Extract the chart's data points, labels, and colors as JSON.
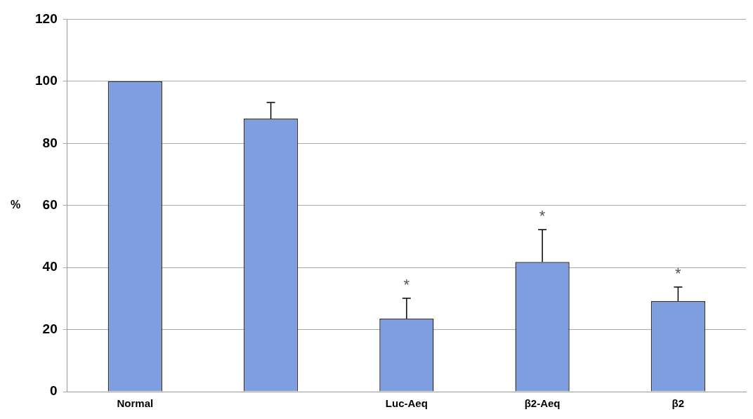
{
  "chart_data": {
    "type": "bar",
    "ylabel": "%",
    "categories": [
      "Normal",
      null,
      "Luc-Aeq",
      "β2-Aeq",
      "β2"
    ],
    "values": [
      100,
      88,
      23.5,
      41.8,
      29.2
    ],
    "errors": [
      null,
      5.2,
      6.6,
      10.4,
      4.5
    ],
    "color": "#7f9ee0",
    "ylim": [
      0,
      120
    ],
    "yticks": [
      0,
      20,
      40,
      60,
      80,
      100,
      120
    ],
    "grid": "y",
    "annotations": [
      {
        "text": "*",
        "x": "Luc-Aeq",
        "y": 30.1
      },
      {
        "text": "*",
        "x": "β2-Aeq",
        "y": 52.2
      },
      {
        "text": "*",
        "x": "β2",
        "y": 33.7
      }
    ]
  }
}
